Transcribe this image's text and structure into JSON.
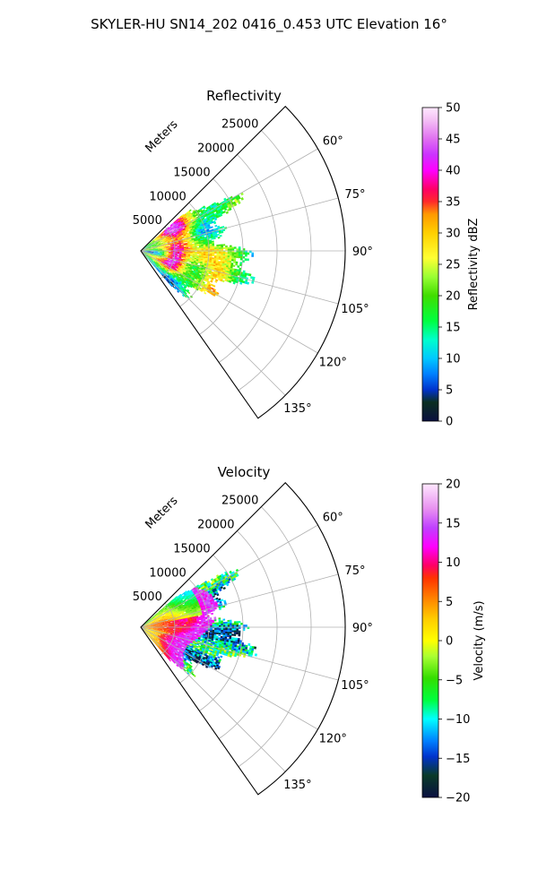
{
  "figure": {
    "suptitle": "SKYLER-HU  SN14_202  0416_0.453 UTC Elevation 16°"
  },
  "chart_data": [
    {
      "type": "heatmap",
      "subtype": "polar-sector (radar PPI)",
      "title": "Reflectivity",
      "radial_label": "Meters",
      "radial_ticks": [
        "5000",
        "10000",
        "15000",
        "20000",
        "25000"
      ],
      "radial_range": [
        0,
        30000
      ],
      "azimuth_range_deg": [
        45,
        145
      ],
      "azimuth_ticks": [
        "60°",
        "75°",
        "90°",
        "105°",
        "120°",
        "135°"
      ],
      "grid": true,
      "colorbar": {
        "label": "Reflectivity dBZ",
        "range": [
          0,
          50
        ],
        "ticks": [
          "0",
          "5",
          "10",
          "15",
          "20",
          "25",
          "30",
          "35",
          "40",
          "45",
          "50"
        ]
      },
      "data_extent": {
        "azimuth_deg": [
          49,
          139
        ],
        "range_m": [
          0,
          17500
        ]
      },
      "features": [
        {
          "azimuth_deg": 68,
          "range_m": 6000,
          "value": 42,
          "note": "magenta core"
        },
        {
          "azimuth_deg": 104,
          "range_m": 5000,
          "value": 38,
          "note": "red core"
        },
        {
          "azimuth_deg": 113,
          "range_m": 12000,
          "value": 42,
          "note": "magenta/red core"
        },
        {
          "azimuth_deg": 85,
          "range_m": 12000,
          "value": 25,
          "note": "yellow band"
        }
      ]
    },
    {
      "type": "heatmap",
      "subtype": "polar-sector (radar PPI)",
      "title": "Velocity",
      "radial_label": "Meters",
      "radial_ticks": [
        "5000",
        "10000",
        "15000",
        "20000",
        "25000"
      ],
      "radial_range": [
        0,
        30000
      ],
      "azimuth_range_deg": [
        45,
        145
      ],
      "azimuth_ticks": [
        "60°",
        "75°",
        "90°",
        "105°",
        "120°",
        "135°"
      ],
      "grid": true,
      "colorbar": {
        "label": "Velocity (m/s)",
        "range": [
          -20,
          20
        ],
        "ticks": [
          "−20",
          "−15",
          "−10",
          "−5",
          "0",
          "5",
          "10",
          "15",
          "20"
        ]
      },
      "data_extent": {
        "azimuth_deg": [
          49,
          139
        ],
        "range_m": [
          0,
          17500
        ]
      },
      "features": [
        {
          "azimuth_deg": 65,
          "range_m": 5000,
          "value": -3,
          "note": "green inbound near radar"
        },
        {
          "azimuth_deg": 110,
          "range_m": 5000,
          "value": 2,
          "note": "yellow near radar"
        },
        {
          "azimuth_deg": 95,
          "range_m": 8000,
          "value": 14,
          "note": "magenta band"
        },
        {
          "azimuth_deg": 100,
          "range_m": 13000,
          "value": -11,
          "note": "cyan outer region"
        }
      ]
    }
  ],
  "colors": {
    "grid": "#b0b0b0",
    "frame": "#000000",
    "missing": "#ffffff"
  }
}
